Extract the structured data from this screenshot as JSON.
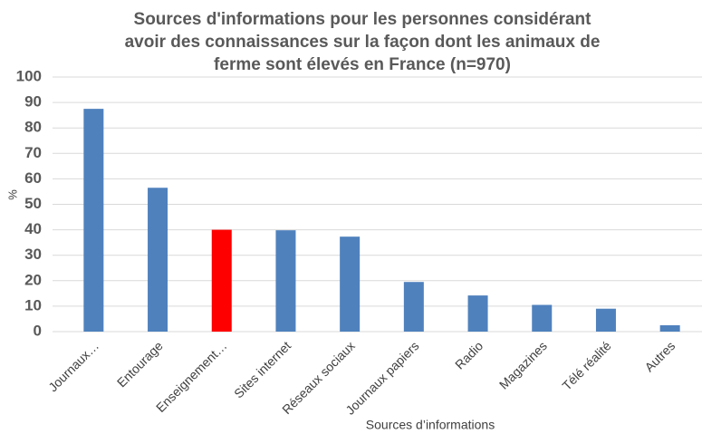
{
  "chart_data": {
    "type": "bar",
    "title": [
      "Sources d'informations pour les personnes considérant",
      "avoir des connaissances  sur la façon dont les animaux de",
      "ferme sont élevés en France (n=970)"
    ],
    "x_label": "Sources d’informations",
    "y_label": "%",
    "categories": [
      "Journaux…",
      "Entourage",
      "Enseignement…",
      "Sites internet",
      "Réseaux sociaux",
      "Journaux papiers",
      "Radio",
      "Magazines",
      "Télé réalité",
      "Autres"
    ],
    "values": [
      87.5,
      56.5,
      40,
      39.8,
      37.3,
      19.5,
      14.2,
      10.5,
      9,
      2.5
    ],
    "colors": [
      "#4f81bd",
      "#4f81bd",
      "#ff0000",
      "#4f81bd",
      "#4f81bd",
      "#4f81bd",
      "#4f81bd",
      "#4f81bd",
      "#4f81bd",
      "#4f81bd"
    ],
    "ylim": [
      0,
      100
    ],
    "yticks": [
      0,
      10,
      20,
      30,
      40,
      50,
      60,
      70,
      80,
      90,
      100
    ],
    "grid": true
  }
}
